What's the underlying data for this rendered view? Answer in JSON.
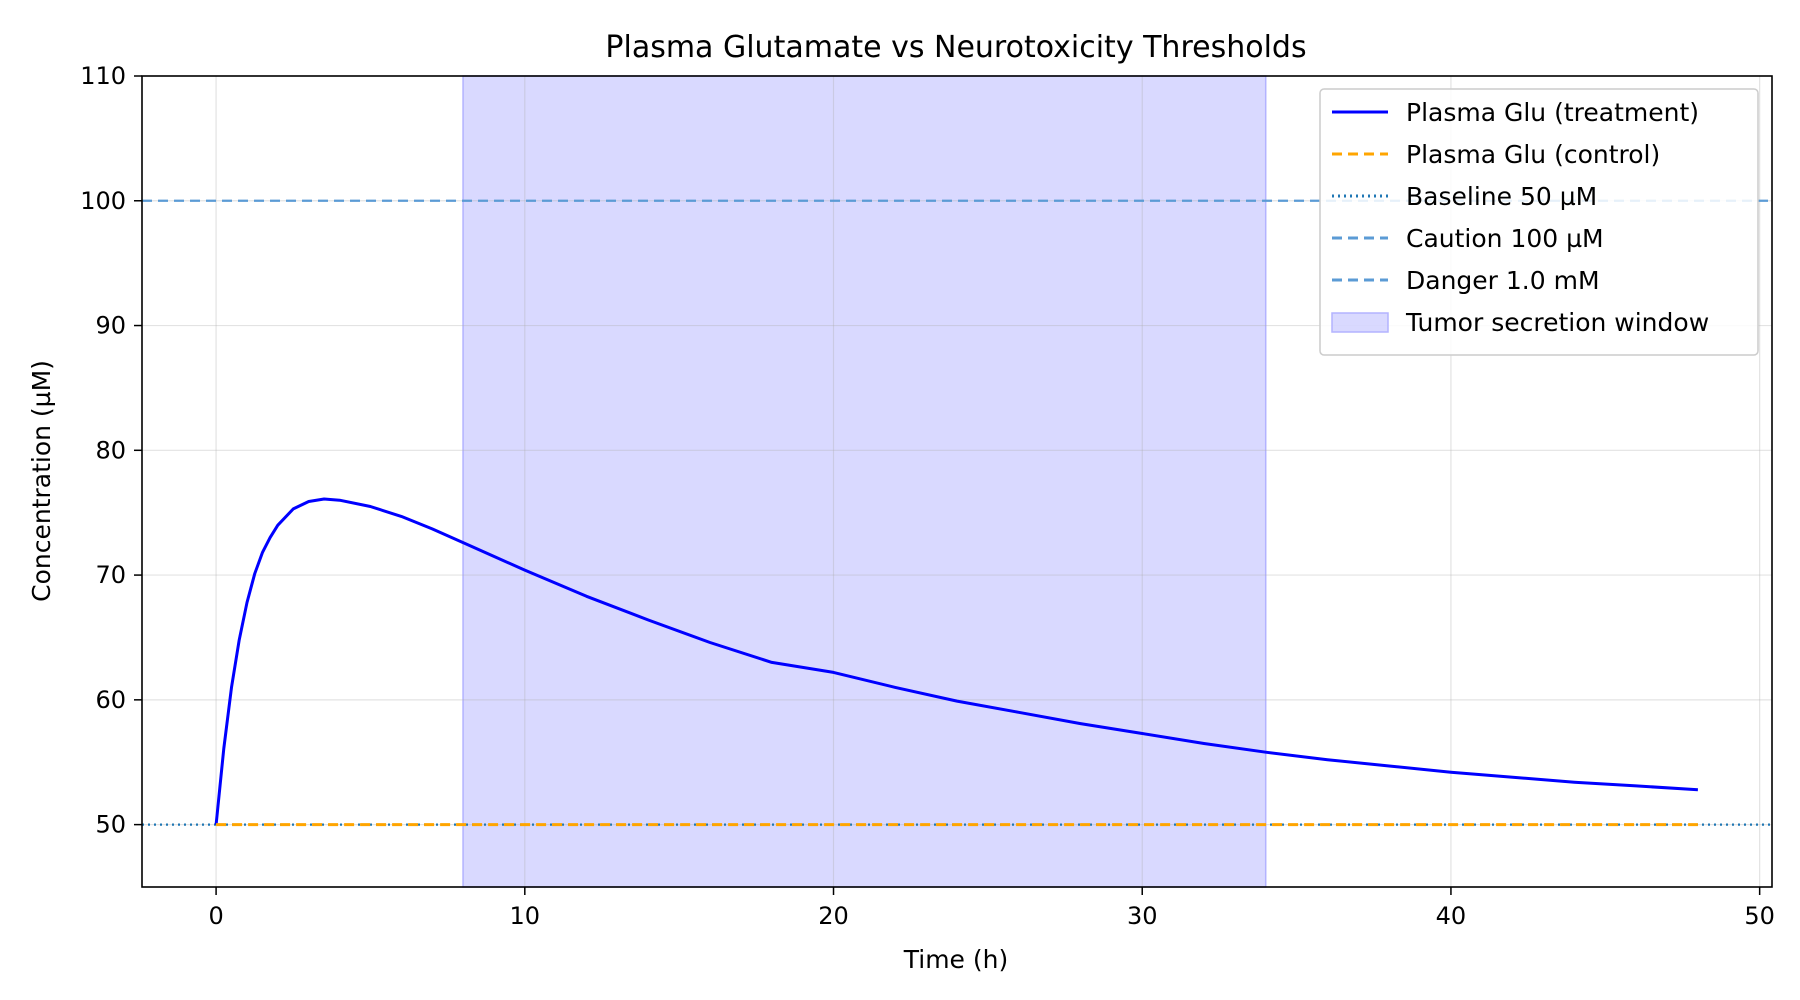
{
  "chart_data": {
    "type": "line",
    "title": "Plasma Glutamate vs Neurotoxicity Thresholds",
    "xlabel": "Time (h)",
    "ylabel": "Concentration (µM)",
    "xlim": [
      -2.4,
      50.4
    ],
    "ylim": [
      45,
      110
    ],
    "xticks": [
      0,
      10,
      20,
      30,
      40,
      50
    ],
    "yticks": [
      50,
      60,
      70,
      80,
      90,
      100,
      110
    ],
    "grid": true,
    "legend_position": "top-right",
    "series": [
      {
        "name": "Plasma Glu (treatment)",
        "color": "#0000ff",
        "style": "solid",
        "x": [
          0,
          0.25,
          0.5,
          0.75,
          1,
          1.25,
          1.5,
          1.75,
          2,
          2.5,
          3,
          3.5,
          4,
          5,
          6,
          7,
          8,
          9,
          10,
          12,
          14,
          16,
          18,
          20,
          22,
          24,
          26,
          28,
          30,
          32,
          34,
          36,
          38,
          40,
          42,
          44,
          46,
          48
        ],
        "y": [
          50,
          56.1,
          61.0,
          64.8,
          67.8,
          70.1,
          71.8,
          73.0,
          74.0,
          75.3,
          75.9,
          76.1,
          76.0,
          75.5,
          74.7,
          73.7,
          72.6,
          71.5,
          70.4,
          68.3,
          66.4,
          64.6,
          63.0,
          62.2,
          61.0,
          59.9,
          59.0,
          58.1,
          57.3,
          56.5,
          55.8,
          55.2,
          54.7,
          54.2,
          53.8,
          53.4,
          53.1,
          52.8
        ]
      },
      {
        "name": "Plasma Glu (control)",
        "color": "#ffa500",
        "style": "dashed",
        "x": [
          0,
          48
        ],
        "y": [
          50,
          50
        ]
      }
    ],
    "reference_lines": [
      {
        "name": "Baseline 50 µM",
        "value": 50,
        "color": "#1f77b4",
        "style": "dotted"
      },
      {
        "name": "Caution 100 µM",
        "value": 100,
        "color": "#5b9bd5",
        "style": "dashed"
      },
      {
        "name": "Danger 1.0 mM",
        "value": 1000,
        "color": "#5b9bd5",
        "style": "dashed"
      }
    ],
    "shaded_regions": [
      {
        "name": "Tumor secretion window",
        "x_start": 8,
        "x_end": 34,
        "color": "#b3b3ff"
      }
    ]
  }
}
